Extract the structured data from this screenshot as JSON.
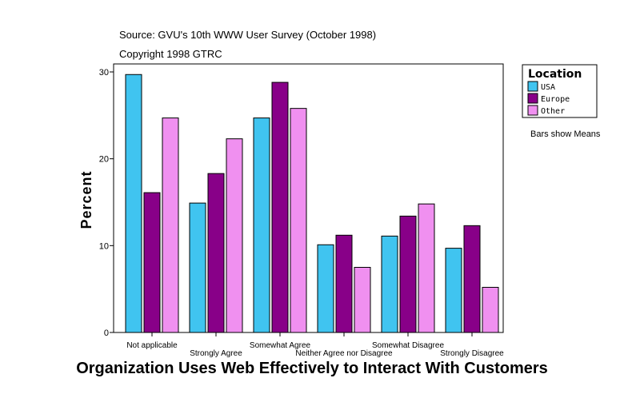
{
  "chart_data": {
    "type": "bar",
    "subtitle_lines": [
      "Source: GVU's 10th WWW User Survey (October 1998)",
      "Copyright 1998 GTRC"
    ],
    "xlabel": "Organization Uses Web Effectively to Interact With Customers",
    "ylabel": "Percent",
    "ylim": [
      0,
      30
    ],
    "yticks": [
      0,
      10,
      20,
      30
    ],
    "grid": false,
    "categories": [
      "Not applicable",
      "Strongly Agree",
      "Somewhat Agree",
      "Neither Agree nor Disagree",
      "Somewhat Disagree",
      "Strongly Disagree"
    ],
    "series": [
      {
        "name": "USA",
        "color": "#40C4F0",
        "values": [
          29.7,
          14.9,
          24.7,
          10.1,
          11.1,
          9.7
        ]
      },
      {
        "name": "Europe",
        "color": "#880088",
        "values": [
          16.1,
          18.3,
          28.8,
          11.2,
          13.4,
          12.3
        ]
      },
      {
        "name": "Other",
        "color": "#F090F0",
        "values": [
          24.7,
          22.3,
          25.8,
          7.5,
          14.8,
          5.2
        ]
      }
    ],
    "legend": {
      "title": "Location",
      "placement": "right"
    },
    "note": "Bars show Means"
  }
}
